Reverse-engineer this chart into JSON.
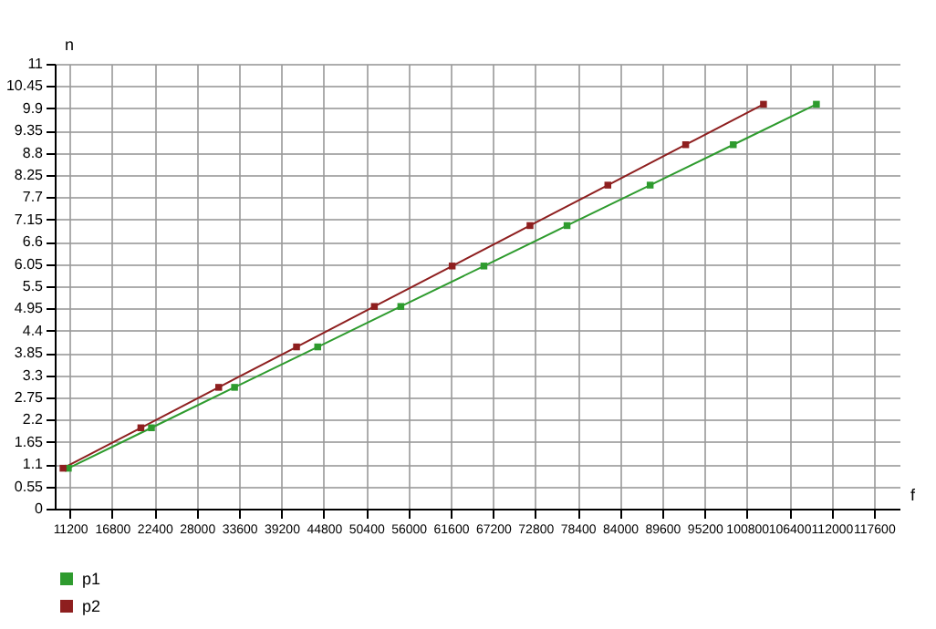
{
  "chart_data": {
    "type": "line",
    "xlabel": "f",
    "ylabel": "n",
    "xlim": [
      9200,
      121000
    ],
    "xticks": [
      11200,
      16800,
      22400,
      28000,
      33600,
      39200,
      44800,
      50400,
      56000,
      61600,
      67200,
      72800,
      78400,
      84000,
      89600,
      95200,
      100800,
      106400,
      112000,
      117600
    ],
    "ylim": [
      0,
      11
    ],
    "yticks": [
      0,
      0.55,
      1.1,
      1.65,
      2.2,
      2.75,
      3.3,
      3.85,
      4.4,
      4.95,
      5.5,
      6.05,
      6.6,
      7.15,
      7.7,
      8.25,
      8.8,
      9.35,
      9.9,
      10.45,
      11
    ],
    "grid": true,
    "legend": "bottom",
    "marker": "square",
    "series": [
      {
        "name": "p1",
        "color": "#2e9b2e",
        "x": [
          11000,
          22000,
          33000,
          44000,
          55000,
          66000,
          77000,
          88000,
          99000,
          110000
        ],
        "values": [
          1,
          2,
          3,
          4,
          5,
          6,
          7,
          8,
          9,
          10
        ]
      },
      {
        "name": "p2",
        "color": "#8e1f1f",
        "x": [
          10300,
          20600,
          30900,
          41200,
          51500,
          61800,
          72100,
          82400,
          92700,
          103000
        ],
        "values": [
          1,
          2,
          3,
          4,
          5,
          6,
          7,
          8,
          9,
          10
        ]
      }
    ]
  }
}
